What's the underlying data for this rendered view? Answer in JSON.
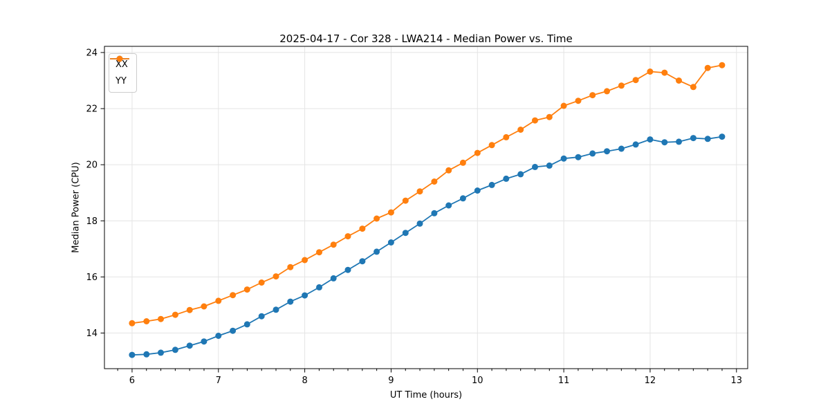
{
  "chart_data": {
    "type": "line",
    "title": "2025-04-17 - Cor 328 - LWA214 - Median Power vs. Time",
    "xlabel": "UT Time (hours)",
    "ylabel": "Median Power (CPU)",
    "xlim": [
      5.68,
      13.13
    ],
    "ylim": [
      12.73,
      24.22
    ],
    "x_ticks": [
      6,
      7,
      8,
      9,
      10,
      11,
      12,
      13
    ],
    "y_ticks": [
      14,
      16,
      18,
      20,
      22,
      24
    ],
    "x_minor_tick_step_hours": 0.1667,
    "grid": "major",
    "legend_position": "upper-left",
    "marker": "circle",
    "x": [
      6.0,
      6.167,
      6.333,
      6.5,
      6.667,
      6.833,
      7.0,
      7.167,
      7.333,
      7.5,
      7.667,
      7.833,
      8.0,
      8.167,
      8.333,
      8.5,
      8.667,
      8.833,
      9.0,
      9.167,
      9.333,
      9.5,
      9.667,
      9.833,
      10.0,
      10.167,
      10.333,
      10.5,
      10.667,
      10.833,
      11.0,
      11.167,
      11.333,
      11.5,
      11.667,
      11.833,
      12.0,
      12.167,
      12.333,
      12.5,
      12.667,
      12.833
    ],
    "series": [
      {
        "name": "XX",
        "color": "#1f77b4",
        "values": [
          13.22,
          13.24,
          13.3,
          13.4,
          13.55,
          13.7,
          13.9,
          14.08,
          14.31,
          14.6,
          14.83,
          15.12,
          15.34,
          15.63,
          15.95,
          16.25,
          16.56,
          16.9,
          17.23,
          17.57,
          17.9,
          18.27,
          18.55,
          18.8,
          19.08,
          19.28,
          19.5,
          19.66,
          19.92,
          19.97,
          20.22,
          20.27,
          20.4,
          20.48,
          20.57,
          20.72,
          20.9,
          20.8,
          20.82,
          20.95,
          20.92,
          21.0
        ]
      },
      {
        "name": "YY",
        "color": "#ff7f0e",
        "values": [
          14.35,
          14.42,
          14.5,
          14.65,
          14.82,
          14.95,
          15.15,
          15.35,
          15.55,
          15.8,
          16.02,
          16.35,
          16.6,
          16.88,
          17.15,
          17.45,
          17.72,
          18.08,
          18.3,
          18.72,
          19.05,
          19.4,
          19.8,
          20.07,
          20.42,
          20.7,
          20.98,
          21.25,
          21.58,
          21.7,
          22.1,
          22.28,
          22.48,
          22.62,
          22.82,
          23.02,
          23.32,
          23.28,
          23.0,
          22.77,
          23.45,
          23.55
        ]
      }
    ],
    "style": {
      "grid_color": "#e4e4e4",
      "spine_color": "#000000",
      "background": "#ffffff",
      "line_width": 1.8,
      "marker_radius": 4.5
    }
  }
}
